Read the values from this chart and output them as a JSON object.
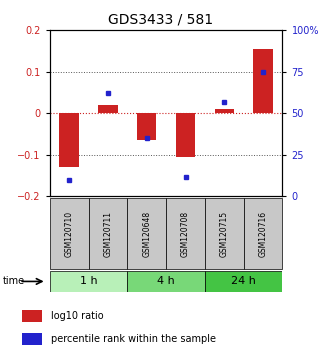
{
  "title": "GDS3433 / 581",
  "samples": [
    "GSM120710",
    "GSM120711",
    "GSM120648",
    "GSM120708",
    "GSM120715",
    "GSM120716"
  ],
  "log10_ratio": [
    -0.13,
    0.02,
    -0.065,
    -0.105,
    0.01,
    0.155
  ],
  "percentile_rank": [
    10,
    62,
    35,
    12,
    57,
    75
  ],
  "groups": [
    {
      "label": "1 h",
      "indices": [
        0,
        1
      ],
      "color": "#b8f0b8"
    },
    {
      "label": "4 h",
      "indices": [
        2,
        3
      ],
      "color": "#78d878"
    },
    {
      "label": "24 h",
      "indices": [
        4,
        5
      ],
      "color": "#44c444"
    }
  ],
  "ylim_left": [
    -0.2,
    0.2
  ],
  "ylim_right": [
    0,
    100
  ],
  "yticks_left": [
    -0.2,
    -0.1,
    0.0,
    0.1,
    0.2
  ],
  "yticks_right": [
    0,
    25,
    50,
    75,
    100
  ],
  "bar_color": "#cc2222",
  "dot_color": "#2222cc",
  "hline_color": "#cc2222",
  "dotted_line_color": "#555555",
  "bg_color": "#ffffff",
  "plot_bg": "#ffffff",
  "sample_box_color": "#c8c8c8",
  "title_fontsize": 10,
  "tick_fontsize": 7,
  "sample_fontsize": 5.5,
  "group_fontsize": 8,
  "legend_fontsize": 7
}
